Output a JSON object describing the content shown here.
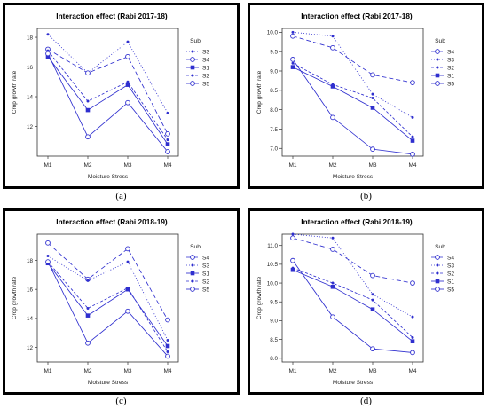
{
  "colors": {
    "series": "#2f2fcf",
    "frame": "#000000",
    "axis": "#333333"
  },
  "chart_data": [
    {
      "type": "line",
      "caption": "(a)",
      "title": "Interaction effect (Rabi 2017-18)",
      "xlabel": "Moisture Stress",
      "ylabel": "Crop growth rate",
      "categories": [
        "M1",
        "M2",
        "M3",
        "M4"
      ],
      "ylim": [
        10,
        18.6
      ],
      "yticks": [
        12,
        14,
        16,
        18
      ],
      "legend_title": "Sub",
      "legend_position": "top-right",
      "series": [
        {
          "name": "S3",
          "marker": "dot",
          "dash": "1,2",
          "values": [
            18.2,
            15.6,
            17.7,
            12.9
          ]
        },
        {
          "name": "S4",
          "marker": "circle",
          "dash": "5,3",
          "values": [
            17.2,
            15.6,
            16.7,
            11.5
          ]
        },
        {
          "name": "S1",
          "marker": "square",
          "dash": "",
          "values": [
            16.7,
            13.1,
            14.8,
            10.8
          ]
        },
        {
          "name": "S2",
          "marker": "dot",
          "dash": "3,2",
          "values": [
            17.1,
            13.7,
            15.0,
            11.1
          ]
        },
        {
          "name": "S5",
          "marker": "circle",
          "dash": "",
          "values": [
            16.9,
            11.3,
            13.6,
            10.3
          ]
        }
      ]
    },
    {
      "type": "line",
      "caption": "(b)",
      "title": "Interaction effect (Rabi 2017-18)",
      "xlabel": "Moisture Stress",
      "ylabel": "Crop growth rate",
      "categories": [
        "M1",
        "M2",
        "M3",
        "M4"
      ],
      "ylim": [
        6.8,
        10.1
      ],
      "yticks": [
        7.0,
        7.5,
        8.0,
        8.5,
        9.0,
        9.5,
        10.0
      ],
      "legend_title": "Sub",
      "legend_position": "top-right",
      "series": [
        {
          "name": "S4",
          "marker": "circle",
          "dash": "5,3",
          "values": [
            9.9,
            9.6,
            8.9,
            8.7
          ]
        },
        {
          "name": "S3",
          "marker": "dot",
          "dash": "1,2",
          "values": [
            10.0,
            9.9,
            8.4,
            7.8
          ]
        },
        {
          "name": "S2",
          "marker": "dot",
          "dash": "3,2",
          "values": [
            9.2,
            8.65,
            8.3,
            7.3
          ]
        },
        {
          "name": "S1",
          "marker": "square",
          "dash": "",
          "values": [
            9.1,
            8.6,
            8.05,
            7.2
          ]
        },
        {
          "name": "S5",
          "marker": "circle",
          "dash": "",
          "values": [
            9.3,
            7.8,
            6.98,
            6.85
          ]
        }
      ]
    },
    {
      "type": "line",
      "caption": "(c)",
      "title": "Interaction effect (Rabi 2018-19)",
      "xlabel": "Moisture Stress",
      "ylabel": "Crop growth rate",
      "categories": [
        "M1",
        "M2",
        "M3",
        "M4"
      ],
      "ylim": [
        11,
        19.8
      ],
      "yticks": [
        12,
        14,
        16,
        18
      ],
      "legend_title": "Sub",
      "legend_position": "top-right",
      "series": [
        {
          "name": "S4",
          "marker": "circle",
          "dash": "5,3",
          "values": [
            19.2,
            16.7,
            18.8,
            13.9
          ]
        },
        {
          "name": "S3",
          "marker": "dot",
          "dash": "1,2",
          "values": [
            18.3,
            16.6,
            17.9,
            12.5
          ]
        },
        {
          "name": "S1",
          "marker": "square",
          "dash": "",
          "values": [
            17.8,
            14.2,
            16.0,
            12.1
          ]
        },
        {
          "name": "S2",
          "marker": "dot",
          "dash": "3,2",
          "values": [
            17.9,
            14.7,
            16.1,
            11.7
          ]
        },
        {
          "name": "S5",
          "marker": "circle",
          "dash": "",
          "values": [
            17.9,
            12.3,
            14.5,
            11.4
          ]
        }
      ]
    },
    {
      "type": "line",
      "caption": "(d)",
      "title": "Interaction effect (Rabi 2018-19)",
      "xlabel": "Moisture Stress",
      "ylabel": "Crop growth rate",
      "categories": [
        "M1",
        "M2",
        "M3",
        "M4"
      ],
      "ylim": [
        7.9,
        11.3
      ],
      "yticks": [
        8.0,
        8.5,
        9.0,
        9.5,
        10.0,
        10.5,
        11.0
      ],
      "legend_title": "Sub",
      "legend_position": "top-right",
      "series": [
        {
          "name": "S4",
          "marker": "circle",
          "dash": "5,3",
          "values": [
            11.2,
            10.9,
            10.2,
            10.0
          ]
        },
        {
          "name": "S3",
          "marker": "dot",
          "dash": "1,2",
          "values": [
            11.3,
            11.2,
            9.7,
            9.1
          ]
        },
        {
          "name": "S2",
          "marker": "dot",
          "dash": "3,2",
          "values": [
            10.4,
            10.0,
            9.55,
            8.55
          ]
        },
        {
          "name": "S1",
          "marker": "square",
          "dash": "",
          "values": [
            10.35,
            9.9,
            9.3,
            8.45
          ]
        },
        {
          "name": "S5",
          "marker": "circle",
          "dash": "",
          "values": [
            10.6,
            9.1,
            8.25,
            8.15
          ]
        }
      ]
    }
  ]
}
